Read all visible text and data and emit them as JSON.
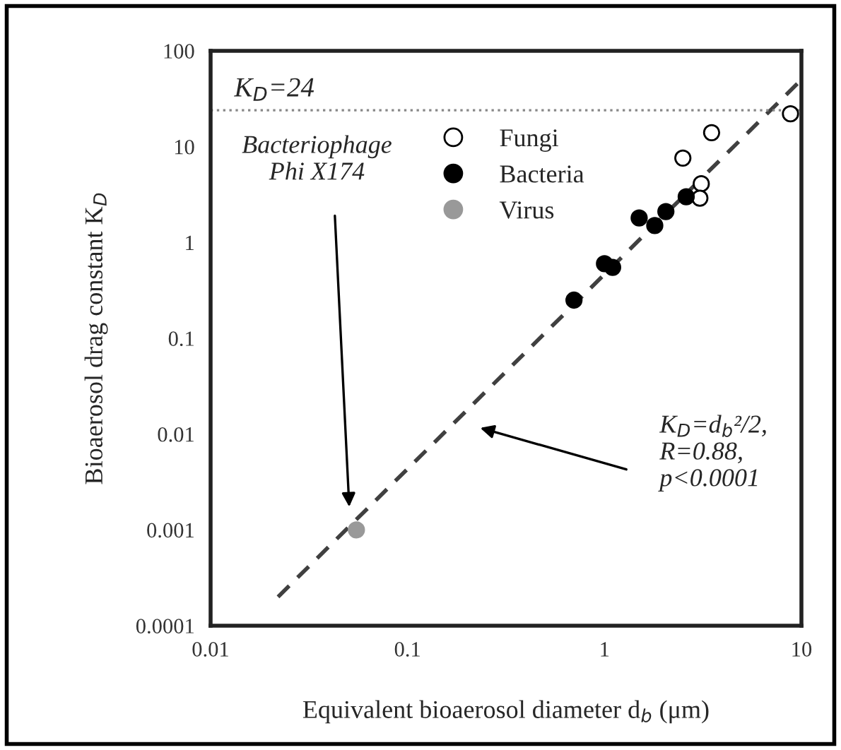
{
  "chart_data": {
    "type": "scatter",
    "xlabel": "Equivalent bioaerosol diameter d$_{b}$ (μm)",
    "ylabel": "Bioaerosol drag constant K$_{D}$",
    "log": "xy",
    "xlim": [
      0.01,
      10
    ],
    "ylim": [
      0.0001,
      100
    ],
    "xticks": [
      0.01,
      0.1,
      1,
      10
    ],
    "yticks": [
      0.0001,
      0.001,
      0.01,
      0.1,
      1,
      10,
      100
    ],
    "grid": false,
    "legend": "top",
    "marker": "circle",
    "series": [
      {
        "name": "Fungi",
        "color": "#ffffff",
        "x": [
          8.8,
          3.5,
          2.5,
          3.1,
          3.05
        ],
        "values": [
          22,
          14,
          7.6,
          4.1,
          2.9
        ]
      },
      {
        "name": "Bacteria",
        "color": "#000000",
        "x": [
          2.6,
          2.05,
          1.5,
          1.8,
          1.0,
          1.1,
          0.7
        ],
        "values": [
          3,
          2.1,
          1.8,
          1.5,
          0.6,
          0.55,
          0.25
        ]
      },
      {
        "name": "Virus",
        "color": "#999999",
        "x": [
          0.055
        ],
        "values": [
          0.001
        ]
      },
      {
        "type": "line",
        "color": "#404040",
        "line_style": "dashed",
        "marker": "none",
        "x": [
          0.022,
          10
        ],
        "values": [
          0.0002,
          50
        ]
      }
    ],
    "ref_lines": [
      {
        "axis": "y",
        "value": 24,
        "label": "K$_{D}$=24",
        "color": "#888888",
        "line_style": "dotted"
      }
    ],
    "annotations": [
      "Bacteriophage\nPhi X174",
      "K$_{D}$=d$_{b}$²/2,\nR=0.88,\np<0.0001"
    ]
  }
}
